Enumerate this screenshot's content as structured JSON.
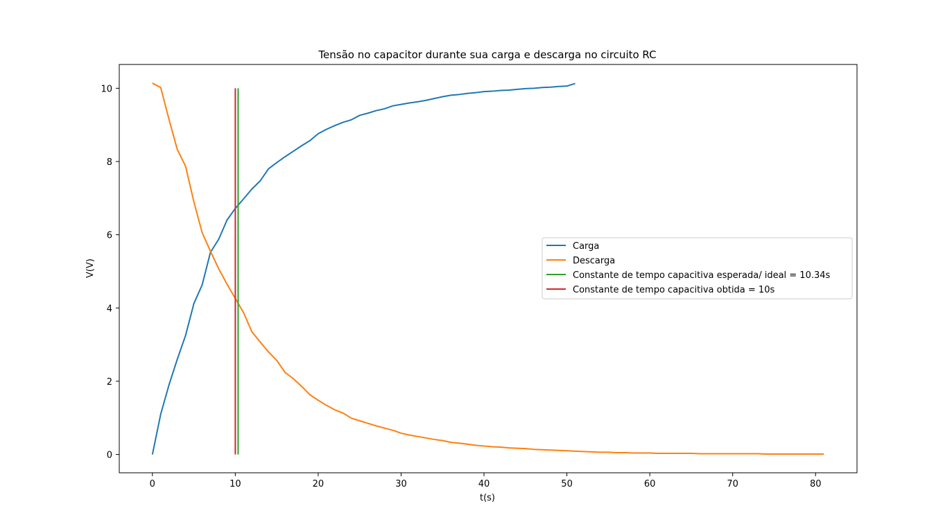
{
  "chart_data": {
    "type": "line",
    "title": "Tensão no capacitor durante sua carga e descarga no circuito RC",
    "xlabel": "t(s)",
    "ylabel": "V(V)",
    "xlim": [
      -4,
      85
    ],
    "ylim": [
      -0.5,
      10.65
    ],
    "xticks": [
      0,
      10,
      20,
      30,
      40,
      50,
      60,
      70,
      80
    ],
    "yticks": [
      0,
      2,
      4,
      6,
      8,
      10
    ],
    "grid": false,
    "legend_position": "center-right",
    "series": [
      {
        "name": "Carga",
        "color": "#1f77b4",
        "x": [
          0,
          1,
          2,
          3,
          4,
          5,
          6,
          7,
          8,
          9,
          10,
          11,
          12,
          13,
          14,
          15,
          16,
          17,
          18,
          19,
          20,
          21,
          22,
          23,
          24,
          25,
          26,
          27,
          28,
          29,
          30,
          31,
          32,
          33,
          34,
          35,
          36,
          37,
          38,
          39,
          40,
          41,
          42,
          43,
          44,
          45,
          46,
          47,
          48,
          49,
          50,
          51
        ],
        "y": [
          0,
          1.1,
          1.9,
          2.6,
          3.25,
          4.12,
          4.63,
          5.52,
          5.88,
          6.4,
          6.72,
          6.98,
          7.25,
          7.47,
          7.8,
          7.97,
          8.13,
          8.28,
          8.43,
          8.57,
          8.76,
          8.88,
          8.98,
          9.07,
          9.14,
          9.26,
          9.32,
          9.39,
          9.44,
          9.52,
          9.56,
          9.6,
          9.63,
          9.67,
          9.72,
          9.77,
          9.81,
          9.83,
          9.86,
          9.88,
          9.91,
          9.92,
          9.94,
          9.95,
          9.97,
          9.99,
          10.0,
          10.02,
          10.03,
          10.05,
          10.06,
          10.13
        ]
      },
      {
        "name": "Descarga",
        "color": "#ff7f0e",
        "x": [
          0,
          1,
          2,
          3,
          4,
          5,
          6,
          7,
          8,
          9,
          10,
          11,
          12,
          13,
          14,
          15,
          16,
          17,
          18,
          19,
          20,
          21,
          22,
          23,
          24,
          25,
          26,
          27,
          28,
          29,
          30,
          31,
          32,
          33,
          34,
          35,
          36,
          37,
          38,
          39,
          40,
          41,
          42,
          43,
          44,
          45,
          46,
          47,
          48,
          49,
          50,
          51,
          52,
          53,
          54,
          55,
          56,
          57,
          58,
          59,
          60,
          61,
          62,
          63,
          64,
          65,
          66,
          67,
          68,
          69,
          70,
          71,
          72,
          73,
          74,
          75,
          76,
          77,
          78,
          79,
          80,
          81
        ],
        "y": [
          10.14,
          10.02,
          9.15,
          8.33,
          7.87,
          6.9,
          6.06,
          5.55,
          5.07,
          4.65,
          4.26,
          3.87,
          3.35,
          3.07,
          2.8,
          2.57,
          2.24,
          2.07,
          1.86,
          1.63,
          1.48,
          1.34,
          1.22,
          1.13,
          0.99,
          0.92,
          0.85,
          0.78,
          0.72,
          0.66,
          0.58,
          0.53,
          0.49,
          0.45,
          0.41,
          0.38,
          0.33,
          0.31,
          0.28,
          0.25,
          0.23,
          0.21,
          0.2,
          0.18,
          0.17,
          0.16,
          0.14,
          0.13,
          0.12,
          0.11,
          0.1,
          0.09,
          0.08,
          0.07,
          0.06,
          0.06,
          0.05,
          0.05,
          0.04,
          0.04,
          0.04,
          0.03,
          0.03,
          0.03,
          0.03,
          0.03,
          0.02,
          0.02,
          0.02,
          0.02,
          0.02,
          0.02,
          0.02,
          0.02,
          0.01,
          0.01,
          0.01,
          0.01,
          0.01,
          0.01,
          0.01,
          0.01
        ]
      },
      {
        "name": "Constante de tempo capacitiva esperada/ ideal = 10.34s",
        "color": "#2ca02c",
        "x": [
          10.34,
          10.34
        ],
        "y": [
          0,
          10
        ]
      },
      {
        "name": "Constante de tempo capacitiva obtida = 10s",
        "color": "#d62728",
        "x": [
          10,
          10
        ],
        "y": [
          0,
          10
        ]
      }
    ]
  }
}
